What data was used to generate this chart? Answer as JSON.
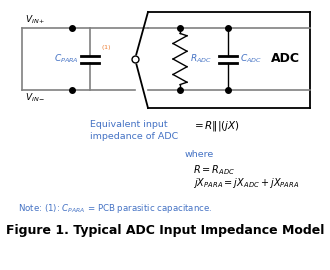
{
  "bg_color": "#ffffff",
  "text_color": "#000000",
  "blue_color": "#4472C4",
  "orange_color": "#ED7D31",
  "line_gray": "#808080",
  "title": "Figure 1. Typical ADC Input Impedance Model",
  "title_fontsize": 9.0
}
